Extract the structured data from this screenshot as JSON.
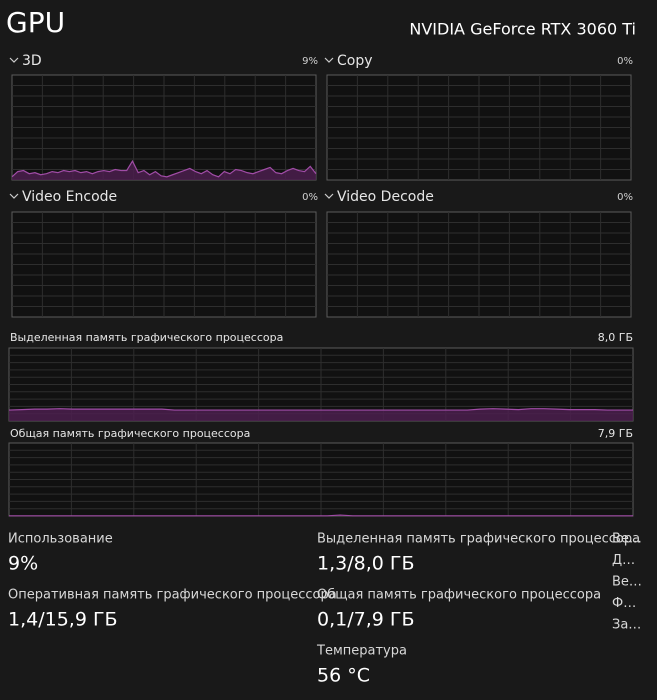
{
  "header": {
    "title": "GPU",
    "device": "NVIDIA GeForce RTX 3060 Ti"
  },
  "engines": [
    {
      "name": "3D",
      "value": "9%",
      "ylim": [
        0,
        100
      ],
      "history": [
        3,
        8,
        9,
        6,
        7,
        5,
        6,
        8,
        7,
        9,
        8,
        9,
        7,
        8,
        6,
        8,
        9,
        8,
        10,
        9,
        9,
        18,
        7,
        9,
        5,
        8,
        4,
        3,
        5,
        7,
        9,
        11,
        8,
        6,
        9,
        5,
        3,
        8,
        6,
        10,
        9,
        7,
        6,
        8,
        10,
        12,
        7,
        6,
        9,
        11,
        9,
        8,
        13,
        6
      ]
    },
    {
      "name": "Copy",
      "value": "0%",
      "ylim": [
        0,
        100
      ]
    },
    {
      "name": "Video Encode",
      "value": "0%",
      "ylim": [
        0,
        100
      ]
    },
    {
      "name": "Video Decode",
      "value": "0%",
      "ylim": [
        0,
        100
      ]
    }
  ],
  "memory_graphs": [
    {
      "name": "Выделенная память графического процессора",
      "value": "8,0 ГБ",
      "ylim": [
        0,
        8.0
      ],
      "history": [
        1.2,
        1.25,
        1.3,
        1.3,
        1.35,
        1.3,
        1.3,
        1.3,
        1.3,
        1.3,
        1.3,
        1.3,
        1.3,
        1.2,
        1.2,
        1.2,
        1.2,
        1.2,
        1.2,
        1.2,
        1.2,
        1.2,
        1.2,
        1.2,
        1.2,
        1.2,
        1.2,
        1.2,
        1.2,
        1.2,
        1.2,
        1.2,
        1.2,
        1.2,
        1.2,
        1.2,
        1.2,
        1.3,
        1.35,
        1.3,
        1.25,
        1.35,
        1.35,
        1.3,
        1.25,
        1.25,
        1.25,
        1.2,
        1.2,
        1.2
      ]
    },
    {
      "name": "Общая память графического процессора",
      "value": "7,9 ГБ",
      "ylim": [
        0,
        7.9
      ],
      "history": [
        0.02,
        0.02,
        0.02,
        0.02,
        0.02,
        0.02,
        0.02,
        0.02,
        0.02,
        0.02,
        0.02,
        0.02,
        0.02,
        0.02,
        0.02,
        0.02,
        0.02,
        0.02,
        0.02,
        0.02,
        0.02,
        0.02,
        0.02,
        0.02,
        0.02,
        0.02,
        0.1,
        0.02,
        0.02,
        0.02,
        0.02,
        0.02,
        0.02,
        0.02,
        0.02,
        0.02,
        0.02,
        0.02,
        0.02,
        0.02,
        0.02,
        0.02,
        0.02,
        0.02,
        0.02,
        0.02,
        0.02,
        0.02,
        0.02,
        0.02
      ]
    }
  ],
  "stats": [
    {
      "label": "Использование",
      "value": "9%"
    },
    {
      "label": "Оперативная память графического процессора",
      "value": "1,4/15,9 ГБ"
    },
    {
      "label": "Выделенная память графического процессора",
      "value": "1,3/8,0 ГБ"
    },
    {
      "label": "Общая память графического процессора",
      "value": "0,1/7,9 ГБ"
    },
    {
      "label": "Температура",
      "value": "56 °C"
    }
  ],
  "side_column": [
    "Ве…",
    "Д…",
    "Ве…",
    "Ф…",
    "За…"
  ]
}
